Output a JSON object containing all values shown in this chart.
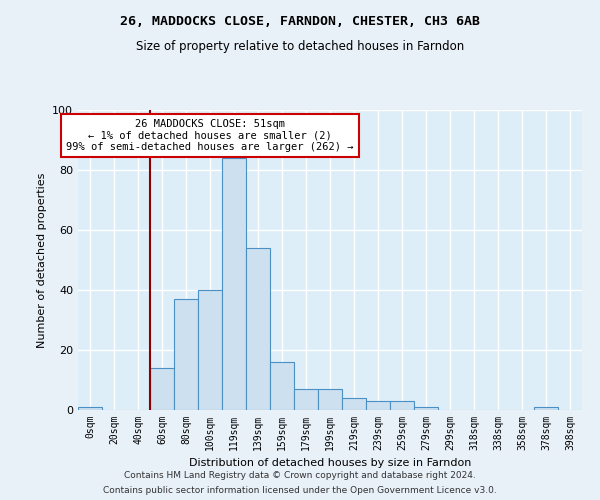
{
  "title": "26, MADDOCKS CLOSE, FARNDON, CHESTER, CH3 6AB",
  "subtitle": "Size of property relative to detached houses in Farndon",
  "xlabel": "Distribution of detached houses by size in Farndon",
  "ylabel": "Number of detached properties",
  "footer1": "Contains HM Land Registry data © Crown copyright and database right 2024.",
  "footer2": "Contains public sector information licensed under the Open Government Licence v3.0.",
  "bin_labels": [
    "0sqm",
    "20sqm",
    "40sqm",
    "60sqm",
    "80sqm",
    "100sqm",
    "119sqm",
    "139sqm",
    "159sqm",
    "179sqm",
    "199sqm",
    "219sqm",
    "239sqm",
    "259sqm",
    "279sqm",
    "299sqm",
    "318sqm",
    "338sqm",
    "358sqm",
    "378sqm",
    "398sqm"
  ],
  "bin_values": [
    1,
    0,
    0,
    14,
    37,
    40,
    84,
    54,
    16,
    7,
    7,
    4,
    3,
    3,
    1,
    0,
    0,
    0,
    0,
    1,
    0
  ],
  "bar_color": "#cce0f0",
  "bar_edge_color": "#4a90c4",
  "bg_color": "#ddeef8",
  "grid_color": "#ffffff",
  "vline_x": 2.5,
  "vline_color": "#8b0000",
  "annotation_title": "26 MADDOCKS CLOSE: 51sqm",
  "annotation_line1": "← 1% of detached houses are smaller (2)",
  "annotation_line2": "99% of semi-detached houses are larger (262) →",
  "annotation_box_color": "#ffffff",
  "annotation_box_edge": "#cc0000",
  "ylim": [
    0,
    100
  ],
  "yticks": [
    0,
    20,
    40,
    60,
    80,
    100
  ],
  "fig_bg_color": "#e8f0f8"
}
